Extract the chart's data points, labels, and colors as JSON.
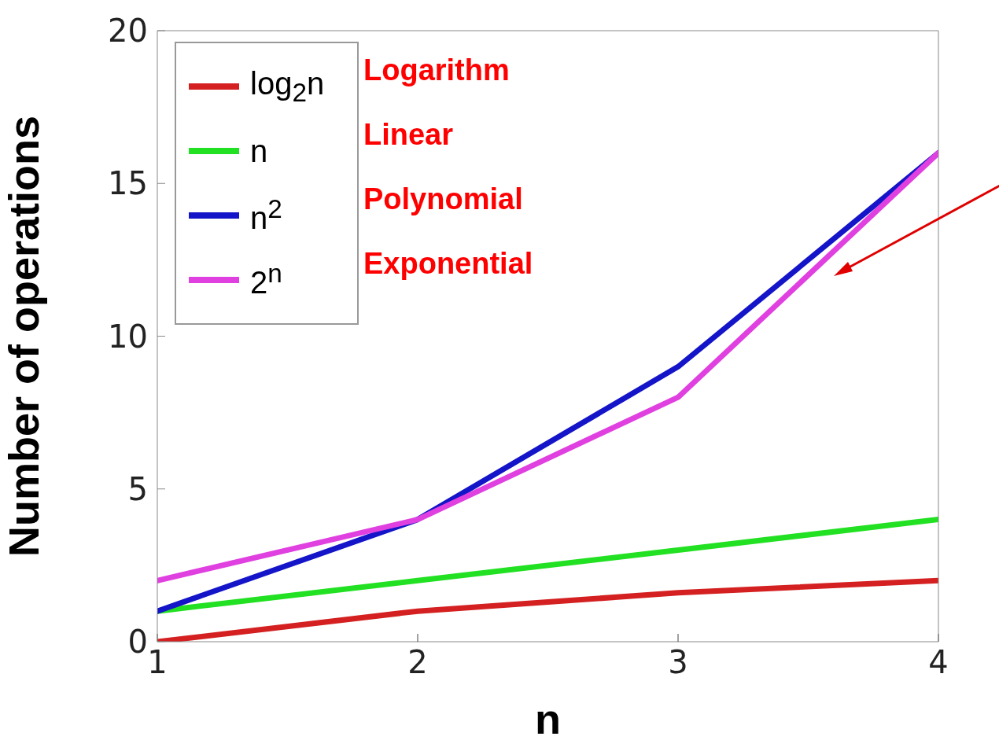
{
  "chart_data": {
    "type": "line",
    "xlabel": "n",
    "ylabel": "Number of operations",
    "x": [
      1,
      2,
      3,
      4
    ],
    "series": [
      {
        "name": "log$_{2}$n",
        "color": "#d42020",
        "values": [
          0,
          1,
          1.6,
          2
        ]
      },
      {
        "name": "n",
        "color": "#22e022",
        "values": [
          1,
          2,
          3,
          4
        ]
      },
      {
        "name": "n$^{2}$",
        "color": "#1414c8",
        "values": [
          1,
          4,
          9,
          16
        ]
      },
      {
        "name": "2$^{n}$",
        "color": "#e040e0",
        "values": [
          2,
          4,
          8,
          16
        ]
      }
    ],
    "xlim": [
      1,
      4
    ],
    "xticks": [
      1,
      2,
      3,
      4
    ],
    "ylim": [
      0,
      20
    ],
    "yticks": [
      0,
      5,
      10,
      15,
      20
    ],
    "annotations": [
      "Logarithm",
      "Linear",
      "Polynomial",
      "Exponential"
    ],
    "legend": "top left",
    "marker": "none",
    "line_style": "solid",
    "grid": false
  }
}
